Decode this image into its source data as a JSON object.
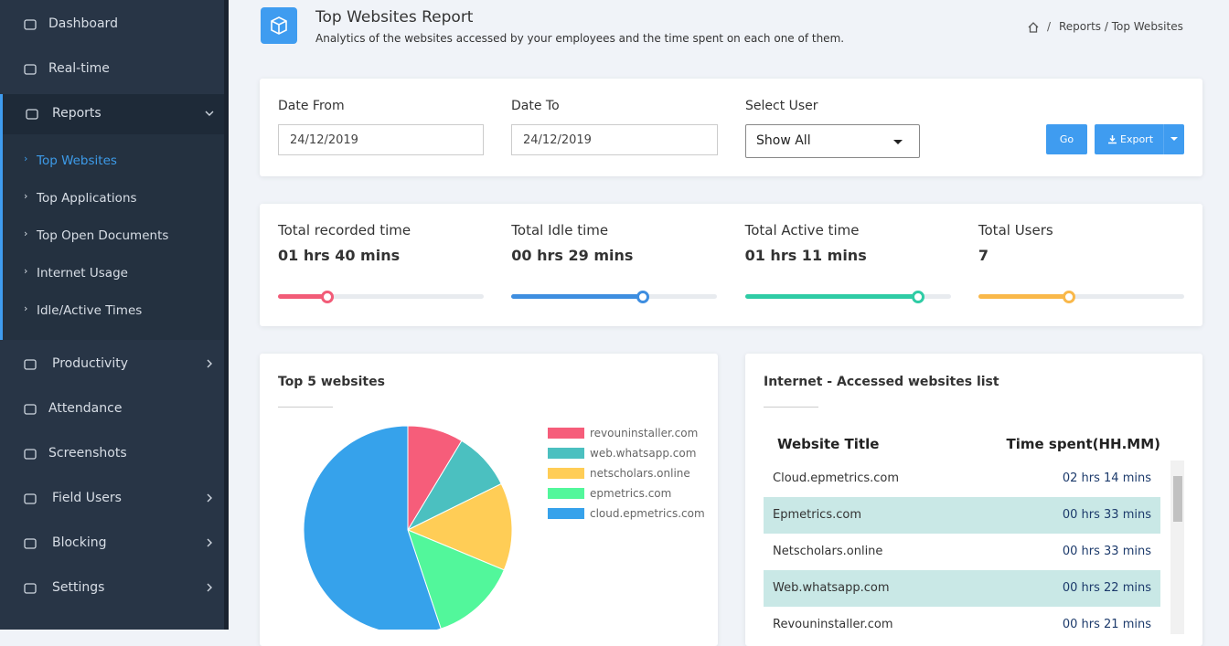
{
  "sidebar": {
    "items": [
      {
        "label": "Dashboard"
      },
      {
        "label": "Real-time"
      },
      {
        "label": "Reports",
        "expanded": true,
        "children": [
          {
            "label": "Top Websites",
            "active": true
          },
          {
            "label": "Top Applications"
          },
          {
            "label": "Top Open Documents"
          },
          {
            "label": "Internet Usage"
          },
          {
            "label": "Idle/Active Times"
          }
        ]
      },
      {
        "label": "Productivity",
        "expandable": true
      },
      {
        "label": "Attendance"
      },
      {
        "label": "Screenshots"
      },
      {
        "label": "Field Users",
        "expandable": true
      },
      {
        "label": "Blocking",
        "expandable": true
      },
      {
        "label": "Settings",
        "expandable": true
      }
    ]
  },
  "header": {
    "title": "Top Websites Report",
    "subtitle": "Analytics of the websites accessed by your employees and the time spent on each one of them.",
    "breadcrumb_separator": "/",
    "breadcrumb": "Reports / Top Websites"
  },
  "filters": {
    "date_from": {
      "label": "Date From",
      "value": "24/12/2019"
    },
    "date_to": {
      "label": "Date To",
      "value": "24/12/2019"
    },
    "select_user": {
      "label": "Select User",
      "value": "Show All"
    },
    "go": "Go",
    "export": "Export"
  },
  "stats": [
    {
      "label": "Total recorded time",
      "value": "01 hrs 40 mins",
      "progress": 24,
      "color": "#f25c78"
    },
    {
      "label": "Total Idle time",
      "value": "00 hrs 29 mins",
      "progress": 64,
      "color": "#3e8ee0"
    },
    {
      "label": "Total Active time",
      "value": "01 hrs 11 mins",
      "progress": 84,
      "color": "#2fcca5"
    },
    {
      "label": "Total Users",
      "value": "7",
      "progress": 44,
      "color": "#f9b84a"
    }
  ],
  "chart_data": {
    "type": "pie",
    "title": "Top 5 websites",
    "categories": [
      "revouninstaller.com",
      "web.whatsapp.com",
      "netscholars.online",
      "epmetrics.com",
      "cloud.epmetrics.com"
    ],
    "values": [
      21,
      22,
      33,
      33,
      134
    ],
    "colors": [
      "#f65d7a",
      "#4bc0c0",
      "#ffcd56",
      "#52f79b",
      "#36a2eb"
    ]
  },
  "table": {
    "title": "Internet - Accessed websites list",
    "columns": [
      "Website Title",
      "Time spent(HH.MM)"
    ],
    "rows": [
      [
        "Cloud.epmetrics.com",
        "02 hrs 14 mins"
      ],
      [
        "Epmetrics.com",
        "00 hrs 33 mins"
      ],
      [
        "Netscholars.online",
        "00 hrs 33 mins"
      ],
      [
        "Web.whatsapp.com",
        "00 hrs 22 mins"
      ],
      [
        "Revouninstaller.com",
        "00 hrs 21 mins"
      ]
    ]
  }
}
